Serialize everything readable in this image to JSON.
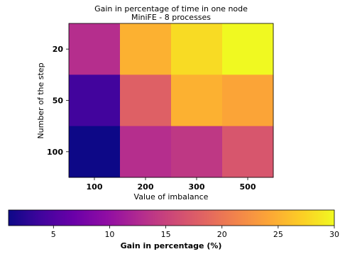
{
  "chart_data": {
    "type": "heatmap",
    "title_lines": [
      "Gain in percentage of time in one node",
      "MiniFE - 8 processes"
    ],
    "xlabel": "Value of imbalance",
    "ylabel": "Number of the step",
    "x_categories": [
      "100",
      "200",
      "300",
      "500"
    ],
    "y_categories": [
      "20",
      "50",
      "100"
    ],
    "values": [
      [
        13,
        25,
        28,
        30
      ],
      [
        4,
        18,
        25,
        24
      ],
      [
        1,
        13,
        14,
        17
      ]
    ],
    "colormap": "plasma",
    "colorbar": {
      "label": "Gain in percentage (%)",
      "range": [
        1,
        30
      ],
      "ticks": [
        "5",
        "10",
        "15",
        "20",
        "25",
        "30"
      ],
      "orientation": "horizontal"
    }
  }
}
